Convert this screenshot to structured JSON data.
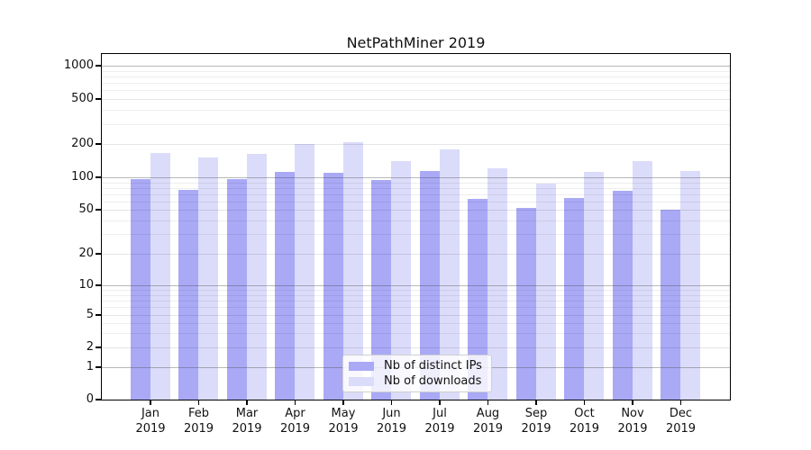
{
  "chart_data": {
    "type": "bar",
    "title": "NetPathMiner 2019",
    "categories": [
      "Jan",
      "Feb",
      "Mar",
      "Apr",
      "May",
      "Jun",
      "Jul",
      "Aug",
      "Sep",
      "Oct",
      "Nov",
      "Dec"
    ],
    "category_year": "2019",
    "series": [
      {
        "name": "Nb of distinct IPs",
        "color": "#a9a9f6",
        "values": [
          97,
          77,
          97,
          111,
          109,
          94,
          115,
          63,
          52,
          64,
          75,
          50
        ]
      },
      {
        "name": "Nb of downloads",
        "color": "#dbdbfa",
        "values": [
          165,
          150,
          163,
          200,
          207,
          140,
          178,
          121,
          88,
          112,
          140,
          114
        ]
      }
    ],
    "xlabel": "",
    "ylabel": "",
    "y_axis": {
      "scale": "symlog",
      "tick_labels": [
        "0",
        "1",
        "2",
        "5",
        "10",
        "20",
        "50",
        "100",
        "200",
        "500",
        "1000"
      ],
      "tick_values": [
        0,
        1,
        2,
        5,
        10,
        20,
        50,
        100,
        200,
        500,
        1000
      ],
      "ylim": [
        0,
        1000
      ]
    },
    "grid": true,
    "legend_position": "bottom-center",
    "background_color": "#ffffff",
    "axis_color": "#000000"
  }
}
